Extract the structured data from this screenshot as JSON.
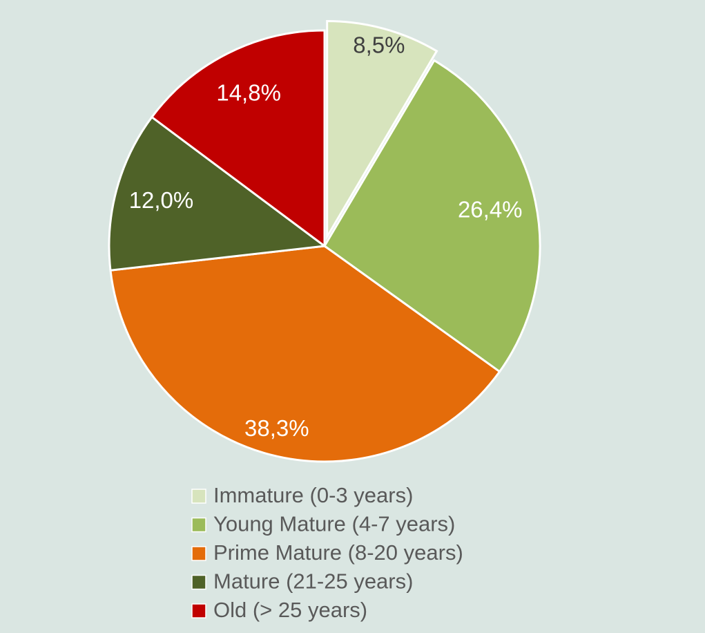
{
  "chart_data": {
    "type": "pie",
    "categories": [
      "Immature (0-3 years)",
      "Young Mature (4-7 years)",
      "Prime Mature (8-20 years)",
      "Mature (21-25 years)",
      "Old (> 25 years)"
    ],
    "values": [
      8.5,
      26.4,
      38.3,
      12.0,
      14.8
    ],
    "value_labels": [
      "8,5%",
      "26,4%",
      "38,3%",
      "12,0%",
      "14,8%"
    ],
    "colors": [
      "#d7e4bd",
      "#9bbb59",
      "#e46c0a",
      "#4f6228",
      "#c00000"
    ],
    "legend": "bottom"
  }
}
